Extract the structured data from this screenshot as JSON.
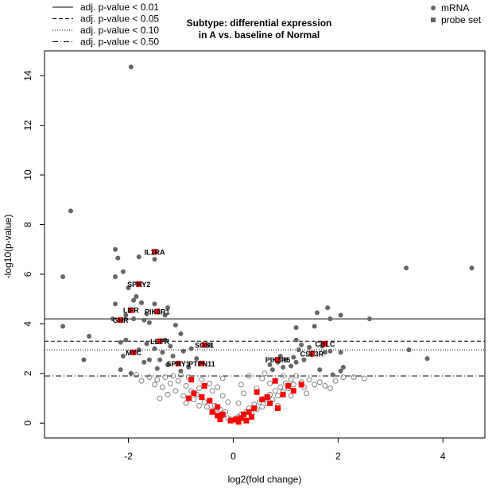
{
  "chart_data": {
    "type": "scatter",
    "title_lines": [
      "Subtype: differential expression",
      "in A vs. baseline of Normal"
    ],
    "xlabel": "log2(fold change)",
    "ylabel": "-log10(p-value)",
    "xlim": [
      -3.6,
      4.8
    ],
    "ylim": [
      -0.6,
      15.0
    ],
    "xticks": [
      -2,
      0,
      2,
      4
    ],
    "yticks": [
      0,
      2,
      4,
      6,
      8,
      10,
      12,
      14
    ],
    "significance_lines": [
      {
        "label": "adj. p-value < 0.01",
        "y": 4.2,
        "style": "solid"
      },
      {
        "label": "adj. p-value < 0.05",
        "y": 3.3,
        "style": "dashed"
      },
      {
        "label": "adj. p-value < 0.10",
        "y": 2.95,
        "style": "dotted"
      },
      {
        "label": "adj. p-value < 0.50",
        "y": 1.9,
        "style": "dotdash"
      }
    ],
    "legend_types": [
      {
        "label": "mRNA",
        "marker": "circle"
      },
      {
        "label": "probe set",
        "marker": "square"
      }
    ],
    "colors": {
      "mrna_filled": "#666666",
      "mrna_open": "#777777",
      "probe": "#ff0000",
      "text": "#000000"
    },
    "labeled_genes": [
      {
        "label": "IL1RA",
        "x": -1.5,
        "y": 6.9
      },
      {
        "label": "SPRY2",
        "x": -1.8,
        "y": 5.6
      },
      {
        "label": "LIFR",
        "x": -1.95,
        "y": 4.55
      },
      {
        "label": "PIK3R1",
        "x": -1.45,
        "y": 4.5
      },
      {
        "label": "GHR",
        "x": -2.15,
        "y": 4.15
      },
      {
        "label": "LEPR",
        "x": -1.4,
        "y": 3.3
      },
      {
        "label": "SOS1",
        "x": -0.55,
        "y": 3.15
      },
      {
        "label": "CBLC",
        "x": 1.75,
        "y": 3.2
      },
      {
        "label": "CSF3R",
        "x": 1.5,
        "y": 2.8
      },
      {
        "label": "MYC",
        "x": -1.9,
        "y": 2.85
      },
      {
        "label": "PIK3R5",
        "x": 0.85,
        "y": 2.55
      },
      {
        "label": "SPRY1",
        "x": -1.05,
        "y": 2.4
      },
      {
        "label": "PTPN11",
        "x": -0.6,
        "y": 2.4
      }
    ],
    "mrna_filled_points": [
      [
        -1.95,
        14.35
      ],
      [
        -3.1,
        8.55
      ],
      [
        -3.25,
        5.9
      ],
      [
        -2.25,
        7.0
      ],
      [
        -2.2,
        6.65
      ],
      [
        -2.1,
        6.1
      ],
      [
        -1.8,
        6.7
      ],
      [
        -1.5,
        6.6
      ],
      [
        -2.25,
        5.9
      ],
      [
        -2.0,
        5.45
      ],
      [
        -1.85,
        5.1
      ],
      [
        -1.9,
        4.95
      ],
      [
        -2.25,
        4.8
      ],
      [
        -1.75,
        4.85
      ],
      [
        -1.5,
        4.8
      ],
      [
        -1.25,
        4.65
      ],
      [
        -1.65,
        4.4
      ],
      [
        -2.05,
        4.35
      ],
      [
        -2.3,
        4.2
      ],
      [
        -1.7,
        4.15
      ],
      [
        -1.3,
        4.35
      ],
      [
        -1.6,
        4.05
      ],
      [
        -1.9,
        4.2
      ],
      [
        -3.25,
        3.9
      ],
      [
        -2.75,
        3.5
      ],
      [
        -2.85,
        2.55
      ],
      [
        -2.05,
        3.35
      ],
      [
        -2.15,
        3.25
      ],
      [
        -1.65,
        3.2
      ],
      [
        -1.3,
        3.35
      ],
      [
        -1.2,
        3.1
      ],
      [
        -1.5,
        3.0
      ],
      [
        -1.8,
        2.95
      ],
      [
        -2.1,
        2.7
      ],
      [
        -2.15,
        2.15
      ],
      [
        -1.7,
        2.45
      ],
      [
        -1.6,
        2.55
      ],
      [
        -1.4,
        2.55
      ],
      [
        -1.15,
        2.7
      ],
      [
        -0.95,
        2.9
      ],
      [
        -1.25,
        2.35
      ],
      [
        -0.85,
        2.25
      ],
      [
        -0.7,
        2.6
      ],
      [
        -0.45,
        3.15
      ],
      [
        -1.0,
        2.1
      ],
      [
        -1.45,
        2.2
      ],
      [
        -1.0,
        3.6
      ],
      [
        -1.1,
        3.95
      ],
      [
        -1.35,
        2.85
      ],
      [
        -0.8,
        3.0
      ],
      [
        -1.95,
        2.0
      ],
      [
        3.3,
        6.25
      ],
      [
        4.55,
        6.25
      ],
      [
        1.8,
        4.65
      ],
      [
        1.6,
        4.45
      ],
      [
        2.05,
        4.35
      ],
      [
        2.6,
        4.2
      ],
      [
        1.85,
        4.2
      ],
      [
        1.2,
        3.85
      ],
      [
        1.55,
        3.9
      ],
      [
        1.2,
        3.35
      ],
      [
        1.3,
        3.15
      ],
      [
        1.25,
        2.95
      ],
      [
        1.45,
        3.05
      ],
      [
        1.7,
        3.1
      ],
      [
        1.85,
        2.9
      ],
      [
        1.75,
        2.85
      ],
      [
        1.5,
        2.75
      ],
      [
        2.05,
        2.85
      ],
      [
        1.35,
        2.55
      ],
      [
        1.2,
        2.45
      ],
      [
        1.15,
        2.65
      ],
      [
        1.0,
        2.55
      ],
      [
        0.85,
        2.45
      ],
      [
        0.9,
        2.7
      ],
      [
        0.7,
        2.35
      ],
      [
        0.75,
        2.15
      ],
      [
        0.95,
        2.25
      ],
      [
        1.1,
        2.3
      ],
      [
        1.65,
        2.15
      ],
      [
        2.05,
        2.1
      ],
      [
        2.1,
        2.25
      ],
      [
        1.9,
        1.95
      ],
      [
        3.35,
        2.95
      ],
      [
        3.7,
        2.6
      ]
    ],
    "mrna_open_points": [
      [
        -1.6,
        1.85
      ],
      [
        -1.45,
        1.75
      ],
      [
        -1.3,
        1.85
      ],
      [
        -1.2,
        1.6
      ],
      [
        -1.05,
        1.7
      ],
      [
        -0.9,
        1.5
      ],
      [
        -1.35,
        1.45
      ],
      [
        -1.1,
        1.3
      ],
      [
        -0.95,
        1.1
      ],
      [
        -1.25,
        1.15
      ],
      [
        -0.8,
        1.3
      ],
      [
        -0.7,
        1.15
      ],
      [
        -0.75,
        0.95
      ],
      [
        -0.6,
        1.05
      ],
      [
        -0.55,
        0.85
      ],
      [
        -0.65,
        0.7
      ],
      [
        -0.5,
        0.65
      ],
      [
        -0.45,
        0.9
      ],
      [
        -0.4,
        0.5
      ],
      [
        -0.35,
        0.7
      ],
      [
        -0.3,
        0.4
      ],
      [
        -0.25,
        0.55
      ],
      [
        -0.2,
        0.3
      ],
      [
        -0.15,
        0.45
      ],
      [
        -0.1,
        0.2
      ],
      [
        -0.05,
        0.15
      ],
      [
        0.0,
        0.1
      ],
      [
        0.05,
        0.2
      ],
      [
        0.1,
        0.25
      ],
      [
        0.15,
        0.35
      ],
      [
        0.2,
        0.2
      ],
      [
        0.25,
        0.45
      ],
      [
        0.3,
        0.6
      ],
      [
        0.35,
        0.4
      ],
      [
        0.4,
        0.75
      ],
      [
        0.45,
        0.55
      ],
      [
        0.5,
        0.85
      ],
      [
        0.55,
        0.65
      ],
      [
        0.6,
        1.0
      ],
      [
        0.65,
        0.8
      ],
      [
        0.7,
        1.15
      ],
      [
        0.75,
        0.95
      ],
      [
        0.8,
        1.3
      ],
      [
        0.85,
        1.1
      ],
      [
        0.9,
        1.45
      ],
      [
        0.95,
        1.25
      ],
      [
        1.0,
        1.6
      ],
      [
        1.05,
        1.4
      ],
      [
        1.1,
        1.75
      ],
      [
        1.15,
        1.55
      ],
      [
        1.2,
        1.9
      ],
      [
        1.3,
        1.65
      ],
      [
        1.35,
        1.45
      ],
      [
        1.45,
        1.75
      ],
      [
        1.55,
        1.55
      ],
      [
        1.65,
        1.65
      ],
      [
        1.75,
        1.5
      ],
      [
        1.85,
        1.4
      ],
      [
        1.95,
        1.7
      ],
      [
        2.1,
        1.85
      ],
      [
        2.3,
        1.85
      ],
      [
        2.5,
        1.8
      ],
      [
        -1.85,
        1.95
      ],
      [
        -1.75,
        1.7
      ],
      [
        -1.5,
        1.55
      ],
      [
        -1.15,
        1.9
      ],
      [
        -0.85,
        1.85
      ],
      [
        -0.6,
        1.75
      ],
      [
        -0.45,
        1.6
      ],
      [
        -0.3,
        1.45
      ],
      [
        -0.4,
        1.3
      ],
      [
        -0.2,
        1.1
      ],
      [
        0.3,
        1.9
      ],
      [
        0.55,
        1.8
      ],
      [
        0.7,
        1.6
      ],
      [
        0.95,
        1.9
      ],
      [
        0.45,
        1.4
      ],
      [
        0.2,
        1.2
      ],
      [
        0.1,
        0.8
      ],
      [
        -0.1,
        0.85
      ],
      [
        1.1,
        1.1
      ],
      [
        0.85,
        0.7
      ],
      [
        -0.9,
        0.8
      ],
      [
        -1.0,
        1.95
      ],
      [
        -0.2,
        1.8
      ],
      [
        0.15,
        1.55
      ],
      [
        0.6,
        2.0
      ],
      [
        1.4,
        1.2
      ],
      [
        -0.65,
        1.4
      ],
      [
        -1.4,
        1.0
      ]
    ],
    "probe_points": [
      [
        -1.5,
        6.9
      ],
      [
        -1.8,
        5.6
      ],
      [
        -1.95,
        4.55
      ],
      [
        -1.45,
        4.5
      ],
      [
        -2.15,
        4.15
      ],
      [
        -1.4,
        3.3
      ],
      [
        -0.55,
        3.15
      ],
      [
        1.75,
        3.2
      ],
      [
        1.5,
        2.8
      ],
      [
        -1.9,
        2.85
      ],
      [
        0.85,
        2.55
      ],
      [
        -1.05,
        2.4
      ],
      [
        -0.6,
        2.4
      ],
      [
        -0.8,
        1.75
      ],
      [
        -0.55,
        1.5
      ],
      [
        -0.75,
        1.2
      ],
      [
        -0.6,
        1.05
      ],
      [
        -0.85,
        1.0
      ],
      [
        -0.45,
        0.9
      ],
      [
        -0.3,
        0.65
      ],
      [
        -0.4,
        0.45
      ],
      [
        -0.3,
        0.3
      ],
      [
        -0.2,
        0.35
      ],
      [
        -0.05,
        0.1
      ],
      [
        0.05,
        0.15
      ],
      [
        0.15,
        0.2
      ],
      [
        0.2,
        0.35
      ],
      [
        0.3,
        0.45
      ],
      [
        0.4,
        0.6
      ],
      [
        0.45,
        1.25
      ],
      [
        0.55,
        0.95
      ],
      [
        0.65,
        1.05
      ],
      [
        0.7,
        0.8
      ],
      [
        0.8,
        1.7
      ],
      [
        0.85,
        0.6
      ],
      [
        0.95,
        1.15
      ],
      [
        1.05,
        1.5
      ],
      [
        1.15,
        1.3
      ],
      [
        1.3,
        1.55
      ],
      [
        -0.25,
        0.15
      ],
      [
        0.1,
        0.05
      ],
      [
        0.35,
        0.25
      ],
      [
        0.25,
        0.1
      ]
    ]
  }
}
